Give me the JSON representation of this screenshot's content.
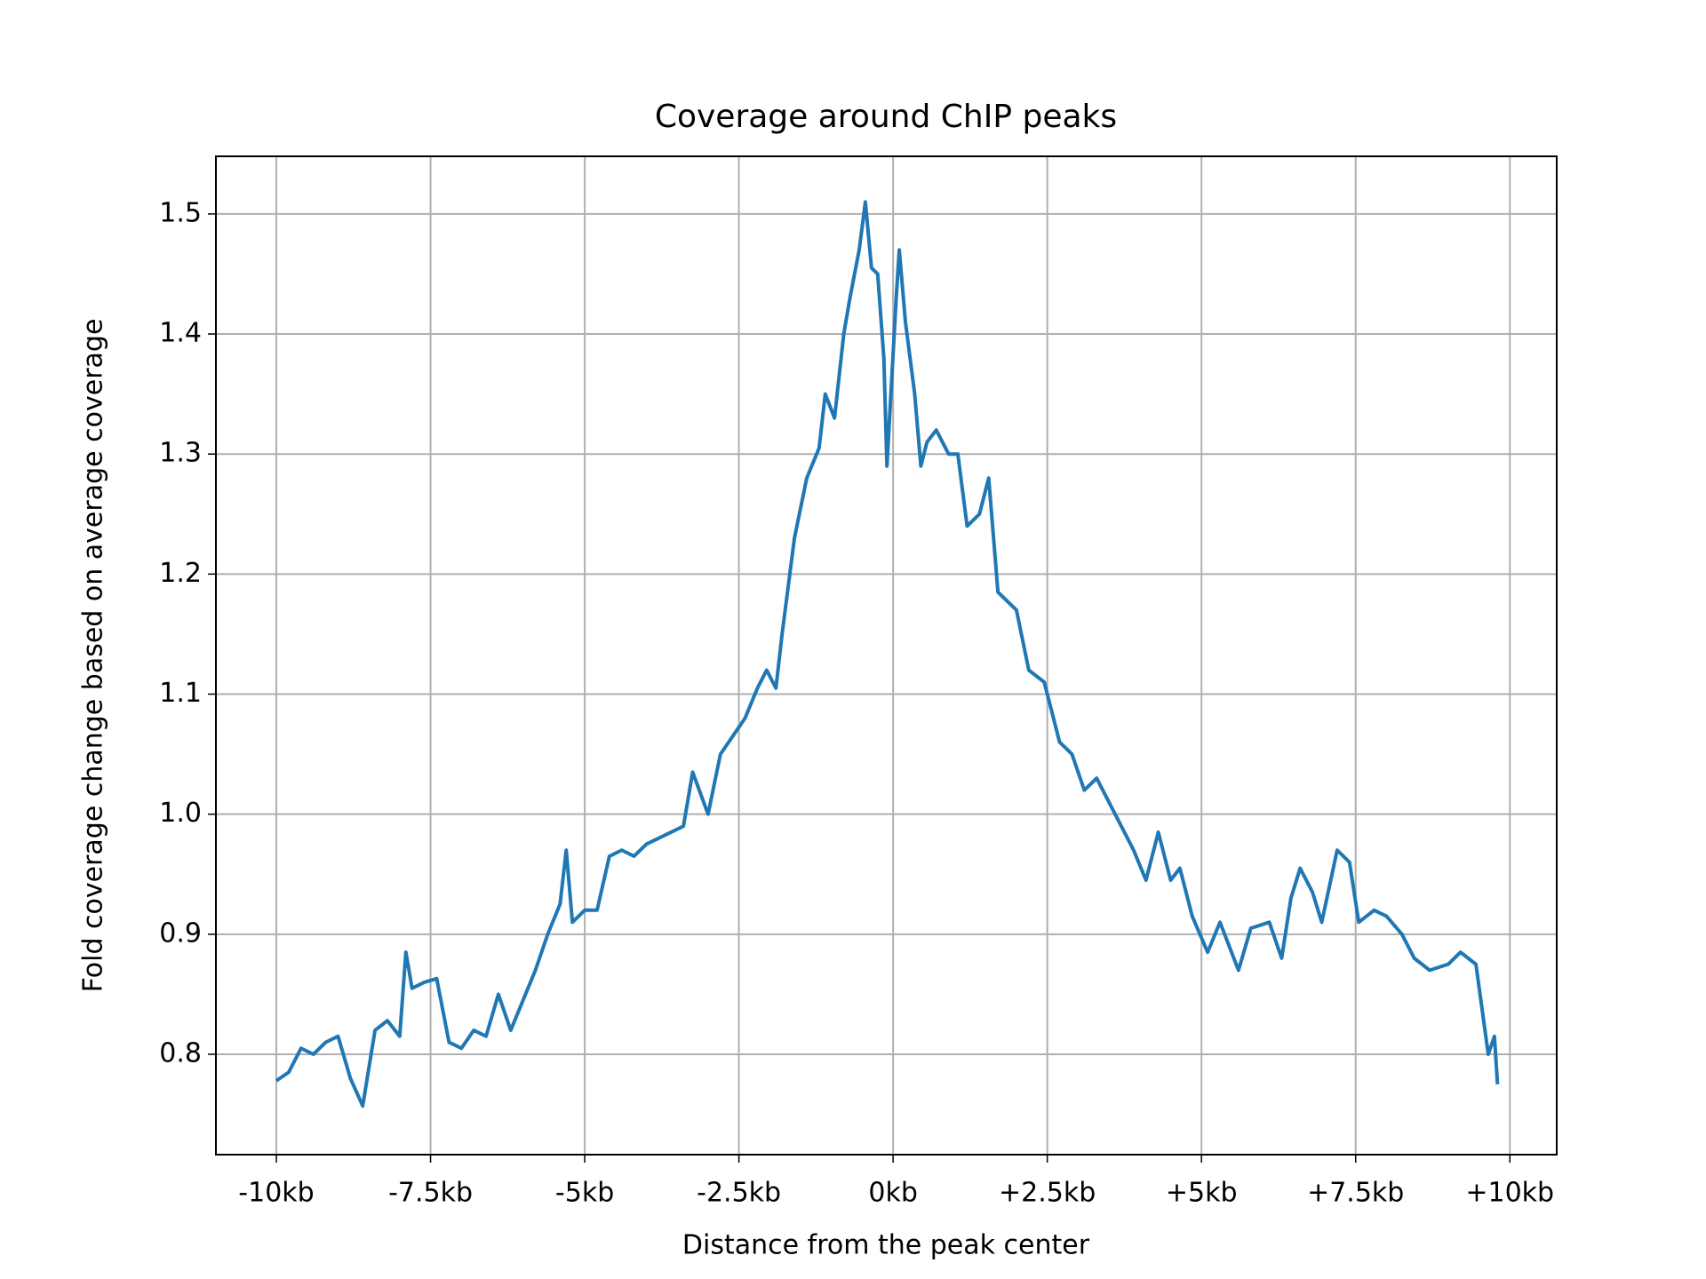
{
  "chart_data": {
    "type": "line",
    "title": "Coverage around ChIP peaks",
    "x_label": "Distance from the peak center",
    "y_label": "Fold coverage change  based on average coverage",
    "grid": true,
    "xlim": [
      -10.98,
      10.76
    ],
    "ylim": [
      0.7164,
      1.548
    ],
    "xticks": [
      {
        "value": -10,
        "label": "-10kb"
      },
      {
        "value": -7.5,
        "label": "-7.5kb"
      },
      {
        "value": -5,
        "label": "-5kb"
      },
      {
        "value": -2.5,
        "label": "-2.5kb"
      },
      {
        "value": 0,
        "label": "0kb"
      },
      {
        "value": 2.5,
        "label": "+2.5kb"
      },
      {
        "value": 5,
        "label": "+5kb"
      },
      {
        "value": 7.5,
        "label": "+7.5kb"
      },
      {
        "value": 10,
        "label": "+10kb"
      }
    ],
    "yticks": [
      {
        "value": 0.8,
        "label": "0.8"
      },
      {
        "value": 0.9,
        "label": "0.9"
      },
      {
        "value": 1.0,
        "label": "1.0"
      },
      {
        "value": 1.1,
        "label": "1.1"
      },
      {
        "value": 1.2,
        "label": "1.2"
      },
      {
        "value": 1.3,
        "label": "1.3"
      },
      {
        "value": 1.4,
        "label": "1.4"
      },
      {
        "value": 1.5,
        "label": "1.5"
      }
    ],
    "x": [
      -10.0,
      -9.8,
      -9.6,
      -9.4,
      -9.2,
      -9.0,
      -8.8,
      -8.6,
      -8.4,
      -8.2,
      -8.0,
      -7.9,
      -7.8,
      -7.6,
      -7.4,
      -7.2,
      -7.0,
      -6.8,
      -6.6,
      -6.4,
      -6.2,
      -6.0,
      -5.8,
      -5.6,
      -5.4,
      -5.3,
      -5.2,
      -5.0,
      -4.8,
      -4.6,
      -4.4,
      -4.2,
      -4.0,
      -3.8,
      -3.6,
      -3.4,
      -3.25,
      -3.0,
      -2.8,
      -2.6,
      -2.4,
      -2.2,
      -2.05,
      -1.9,
      -1.8,
      -1.6,
      -1.4,
      -1.2,
      -1.1,
      -0.95,
      -0.8,
      -0.7,
      -0.55,
      -0.45,
      -0.35,
      -0.25,
      -0.15,
      -0.1,
      0.05,
      0.1,
      0.2,
      0.35,
      0.45,
      0.55,
      0.7,
      0.9,
      1.05,
      1.2,
      1.4,
      1.55,
      1.7,
      2.0,
      2.2,
      2.45,
      2.7,
      2.9,
      3.1,
      3.3,
      3.6,
      3.9,
      4.1,
      4.3,
      4.5,
      4.65,
      4.85,
      5.1,
      5.3,
      5.6,
      5.8,
      6.1,
      6.3,
      6.45,
      6.6,
      6.8,
      6.95,
      7.2,
      7.4,
      7.55,
      7.8,
      8.0,
      8.25,
      8.45,
      8.7,
      9.0,
      9.2,
      9.45,
      9.65,
      9.75,
      9.8
    ],
    "series": [
      {
        "name": "coverage",
        "color": "#1f77b4",
        "values": [
          0.778,
          0.785,
          0.805,
          0.8,
          0.81,
          0.815,
          0.78,
          0.757,
          0.82,
          0.828,
          0.815,
          0.885,
          0.855,
          0.86,
          0.863,
          0.81,
          0.805,
          0.82,
          0.815,
          0.85,
          0.82,
          0.845,
          0.87,
          0.9,
          0.925,
          0.97,
          0.91,
          0.92,
          0.92,
          0.965,
          0.97,
          0.965,
          0.975,
          0.98,
          0.985,
          0.99,
          1.035,
          1.0,
          1.05,
          1.065,
          1.08,
          1.105,
          1.12,
          1.105,
          1.15,
          1.23,
          1.28,
          1.305,
          1.35,
          1.33,
          1.4,
          1.43,
          1.47,
          1.51,
          1.455,
          1.45,
          1.38,
          1.29,
          1.43,
          1.47,
          1.41,
          1.35,
          1.29,
          1.31,
          1.32,
          1.3,
          1.3,
          1.24,
          1.25,
          1.28,
          1.185,
          1.17,
          1.12,
          1.11,
          1.06,
          1.05,
          1.02,
          1.03,
          1.0,
          0.97,
          0.945,
          0.985,
          0.945,
          0.955,
          0.915,
          0.885,
          0.91,
          0.87,
          0.905,
          0.91,
          0.88,
          0.93,
          0.955,
          0.935,
          0.91,
          0.97,
          0.96,
          0.91,
          0.92,
          0.915,
          0.9,
          0.88,
          0.87,
          0.875,
          0.885,
          0.875,
          0.8,
          0.815,
          0.775
        ]
      }
    ]
  }
}
